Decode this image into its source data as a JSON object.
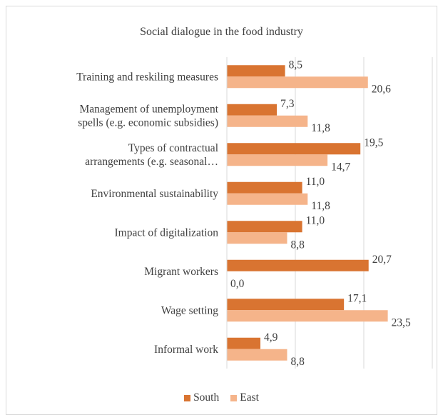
{
  "chart_data": {
    "type": "bar",
    "orientation": "horizontal",
    "title": "Social dialogue in the food industry",
    "categories": [
      [
        "Training and reskiling measures"
      ],
      [
        "Management of unemployment",
        "spells (e.g. economic subsidies)"
      ],
      [
        "Types of contractual",
        "arrangements (e.g. seasonal…"
      ],
      [
        "Environmental sustainability"
      ],
      [
        "Impact of digitalization"
      ],
      [
        "Migrant workers"
      ],
      [
        "Wage setting"
      ],
      [
        "Informal work"
      ]
    ],
    "series": [
      {
        "name": "South",
        "color": "#d97431",
        "values": [
          8.5,
          7.3,
          19.5,
          11.0,
          11.0,
          20.7,
          17.1,
          4.9
        ],
        "labels": [
          "8,5",
          "7,3",
          "19,5",
          "11,0",
          "11,0",
          "20,7",
          "17,1",
          "4,9"
        ]
      },
      {
        "name": "East",
        "color": "#f5b48a",
        "values": [
          20.6,
          11.8,
          14.7,
          11.8,
          8.8,
          0.0,
          23.5,
          8.8
        ],
        "labels": [
          "20,6",
          "11,8",
          "14,7",
          "11,8",
          "8,8",
          "0,0",
          "23,5",
          "8,8"
        ]
      }
    ],
    "xlim": [
      0,
      30
    ],
    "grid": true,
    "legend_position": "bottom"
  }
}
